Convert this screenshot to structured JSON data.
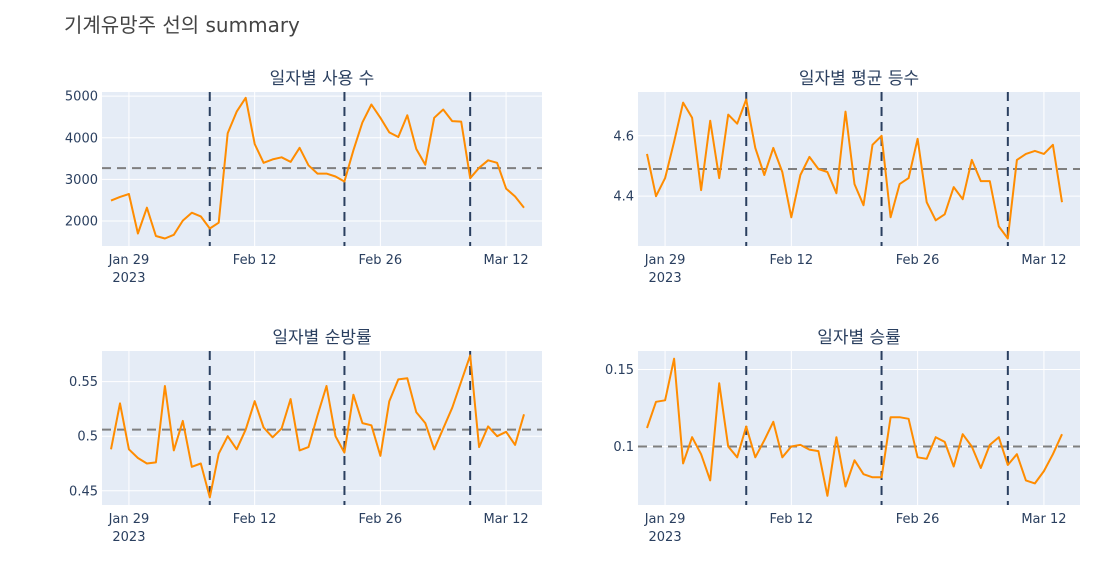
{
  "title": "기계유망주 선의 summary",
  "colors": {
    "line": "#ff8c00",
    "plot_bg": "#e5ecf6",
    "grid": "#ffffff",
    "mean_line": "#7f7f7f",
    "vline": "#2a3f5f",
    "text": "#2a3f5f",
    "title_text": "#444444"
  },
  "chart_data": [
    {
      "type": "line",
      "title": "일자별 사용 수",
      "x_start": "2023-01-26",
      "x_end": "2023-03-16",
      "xticks": [
        {
          "date": "2023-01-29",
          "label": "Jan 29",
          "sublabel": "2023"
        },
        {
          "date": "2023-02-12",
          "label": "Feb 12"
        },
        {
          "date": "2023-02-26",
          "label": "Feb 26"
        },
        {
          "date": "2023-03-12",
          "label": "Mar 12"
        }
      ],
      "ylim": [
        1400,
        5100
      ],
      "yticks": [
        {
          "value": 2000,
          "label": "2000"
        },
        {
          "value": 3000,
          "label": "3000"
        },
        {
          "value": 4000,
          "label": "4000"
        },
        {
          "value": 5000,
          "label": "5000"
        }
      ],
      "mean": 3270,
      "vlines": [
        "2023-02-07",
        "2023-02-22",
        "2023-03-08"
      ],
      "values": [
        2490,
        2580,
        2650,
        1700,
        2320,
        1640,
        1580,
        1670,
        2010,
        2200,
        2110,
        1820,
        1960,
        4110,
        4630,
        4960,
        3850,
        3400,
        3480,
        3530,
        3420,
        3760,
        3340,
        3140,
        3140,
        3070,
        2950,
        3700,
        4370,
        4800,
        4480,
        4130,
        4020,
        4540,
        3730,
        3350,
        4480,
        4680,
        4400,
        4390,
        3030,
        3280,
        3460,
        3400,
        2780,
        2590,
        2320
      ]
    },
    {
      "type": "line",
      "title": "일자별 평균 등수",
      "x_start": "2023-01-26",
      "x_end": "2023-03-16",
      "xticks": [
        {
          "date": "2023-01-29",
          "label": "Jan 29",
          "sublabel": "2023"
        },
        {
          "date": "2023-02-12",
          "label": "Feb 12"
        },
        {
          "date": "2023-02-26",
          "label": "Feb 26"
        },
        {
          "date": "2023-03-12",
          "label": "Mar 12"
        }
      ],
      "ylim": [
        4.235,
        4.745
      ],
      "yticks": [
        {
          "value": 4.4,
          "label": "4.4"
        },
        {
          "value": 4.6,
          "label": "4.6"
        }
      ],
      "mean": 4.49,
      "vlines": [
        "2023-02-07",
        "2023-02-22",
        "2023-03-08"
      ],
      "values": [
        4.54,
        4.4,
        4.46,
        4.58,
        4.71,
        4.66,
        4.42,
        4.65,
        4.46,
        4.67,
        4.64,
        4.72,
        4.56,
        4.47,
        4.56,
        4.48,
        4.33,
        4.47,
        4.53,
        4.49,
        4.48,
        4.41,
        4.68,
        4.44,
        4.37,
        4.57,
        4.6,
        4.33,
        4.44,
        4.46,
        4.59,
        4.38,
        4.32,
        4.34,
        4.43,
        4.39,
        4.52,
        4.45,
        4.45,
        4.3,
        4.26,
        4.52,
        4.54,
        4.55,
        4.54,
        4.57,
        4.38
      ]
    },
    {
      "type": "line",
      "title": "일자별 순방률",
      "x_start": "2023-01-26",
      "x_end": "2023-03-16",
      "xticks": [
        {
          "date": "2023-01-29",
          "label": "Jan 29",
          "sublabel": "2023"
        },
        {
          "date": "2023-02-12",
          "label": "Feb 12"
        },
        {
          "date": "2023-02-26",
          "label": "Feb 26"
        },
        {
          "date": "2023-03-12",
          "label": "Mar 12"
        }
      ],
      "ylim": [
        0.437,
        0.578
      ],
      "yticks": [
        {
          "value": 0.45,
          "label": "0.45"
        },
        {
          "value": 0.5,
          "label": "0.5"
        },
        {
          "value": 0.55,
          "label": "0.55"
        }
      ],
      "mean": 0.506,
      "vlines": [
        "2023-02-07",
        "2023-02-22",
        "2023-03-08"
      ],
      "values": [
        0.488,
        0.53,
        0.488,
        0.48,
        0.475,
        0.476,
        0.546,
        0.487,
        0.514,
        0.472,
        0.475,
        0.444,
        0.484,
        0.5,
        0.488,
        0.506,
        0.532,
        0.508,
        0.499,
        0.507,
        0.534,
        0.487,
        0.49,
        0.519,
        0.546,
        0.5,
        0.485,
        0.538,
        0.512,
        0.51,
        0.482,
        0.532,
        0.552,
        0.553,
        0.522,
        0.512,
        0.488,
        0.507,
        0.526,
        0.55,
        0.574,
        0.49,
        0.509,
        0.5,
        0.504,
        0.492,
        0.52
      ]
    },
    {
      "type": "line",
      "title": "일자별 승률",
      "x_start": "2023-01-26",
      "x_end": "2023-03-16",
      "xticks": [
        {
          "date": "2023-01-29",
          "label": "Jan 29",
          "sublabel": "2023"
        },
        {
          "date": "2023-02-12",
          "label": "Feb 12"
        },
        {
          "date": "2023-02-26",
          "label": "Feb 26"
        },
        {
          "date": "2023-03-12",
          "label": "Mar 12"
        }
      ],
      "ylim": [
        0.062,
        0.162
      ],
      "yticks": [
        {
          "value": 0.1,
          "label": "0.1"
        },
        {
          "value": 0.15,
          "label": "0.15"
        }
      ],
      "mean": 0.1,
      "vlines": [
        "2023-02-07",
        "2023-02-22",
        "2023-03-08"
      ],
      "values": [
        0.112,
        0.129,
        0.13,
        0.157,
        0.089,
        0.106,
        0.095,
        0.078,
        0.141,
        0.1,
        0.093,
        0.113,
        0.093,
        0.104,
        0.116,
        0.093,
        0.1,
        0.101,
        0.098,
        0.097,
        0.068,
        0.106,
        0.074,
        0.091,
        0.082,
        0.08,
        0.08,
        0.119,
        0.119,
        0.118,
        0.093,
        0.092,
        0.106,
        0.103,
        0.087,
        0.108,
        0.1,
        0.086,
        0.101,
        0.106,
        0.088,
        0.095,
        0.078,
        0.076,
        0.084,
        0.095,
        0.108
      ]
    }
  ]
}
